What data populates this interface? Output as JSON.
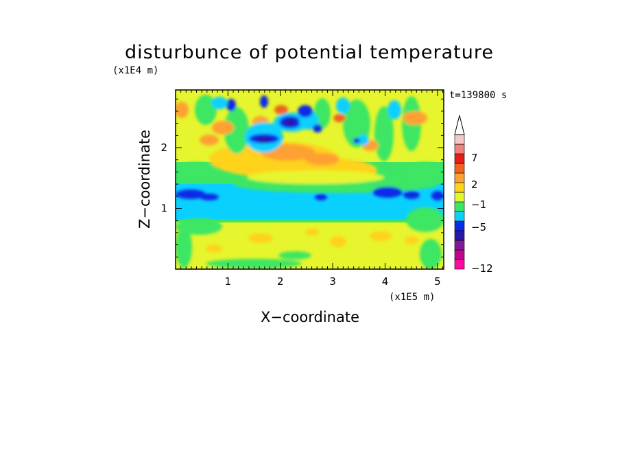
{
  "chart_data": {
    "type": "heatmap",
    "title": "disturbunce of potential temperature",
    "xlabel": "X−coordinate",
    "ylabel": "Z−coordinate",
    "x_unit": "(x1E5 m)",
    "y_unit": "(x1E4 m)",
    "time_label": "t=139800 s",
    "xlim": [
      0,
      5.12
    ],
    "ylim": [
      0,
      2.95
    ],
    "x_ticks": [
      "1",
      "2",
      "3",
      "4",
      "5"
    ],
    "y_ticks": [
      "1",
      "2"
    ],
    "colorbar": {
      "tick_labels": [
        "7",
        "2",
        "−1",
        "−5",
        "−12"
      ],
      "colors": [
        "#ff0aa0",
        "#c0058c",
        "#7f1a9f",
        "#2c16a6",
        "#0a2ce6",
        "#0ad0ff",
        "#3ce664",
        "#e6f52d",
        "#ffd21e",
        "#ffa032",
        "#f0641e",
        "#e61e14",
        "#f0827d",
        "#f5c8c8"
      ],
      "extend": "max"
    },
    "field_description": "layered potential temperature perturbation"
  }
}
